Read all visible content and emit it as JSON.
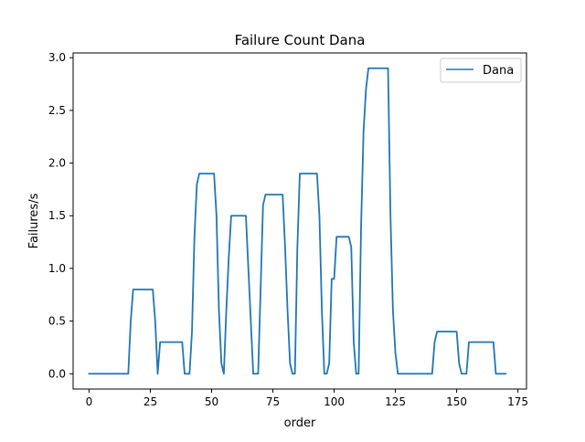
{
  "chart_data": {
    "type": "line",
    "title": "Failure Count Dana",
    "xlabel": "order",
    "ylabel": "Failures/s",
    "xlim": [
      -6.5,
      178.5
    ],
    "ylim": [
      -0.145,
      3.045
    ],
    "x_ticks": [
      0,
      25,
      50,
      75,
      100,
      125,
      150,
      175
    ],
    "x_tick_labels": [
      "0",
      "25",
      "50",
      "75",
      "100",
      "125",
      "150",
      "175"
    ],
    "y_ticks": [
      0.0,
      0.5,
      1.0,
      1.5,
      2.0,
      2.5,
      3.0
    ],
    "y_tick_labels": [
      "0.0",
      "0.5",
      "1.0",
      "1.5",
      "2.0",
      "2.5",
      "3.0"
    ],
    "grid": false,
    "legend": {
      "placement": "top-right",
      "entries": [
        "Dana"
      ]
    },
    "series": [
      {
        "name": "Dana",
        "color": "#1f77b4",
        "x": [
          0,
          16,
          17,
          18,
          26,
          27,
          28,
          29,
          30,
          38,
          39,
          41,
          42,
          43,
          44,
          45,
          46,
          51,
          52,
          53,
          54,
          55,
          56,
          57,
          58,
          64,
          65,
          66,
          67,
          69,
          70,
          71,
          72,
          73,
          74,
          79,
          80,
          81,
          82,
          83,
          84,
          85,
          86,
          87,
          93,
          94,
          95,
          96,
          97,
          98,
          99,
          100,
          101,
          102,
          106,
          107,
          108,
          109,
          110,
          111,
          112,
          113,
          114,
          115,
          116,
          122,
          123,
          124,
          125,
          126,
          127,
          140,
          141,
          142,
          150,
          151,
          152,
          153,
          154,
          155,
          156,
          165,
          166,
          167,
          170
        ],
        "values": [
          0,
          0,
          0.5,
          0.8,
          0.8,
          0.5,
          0,
          0.3,
          0.3,
          0.3,
          0,
          0,
          0.4,
          1.3,
          1.8,
          1.9,
          1.9,
          1.9,
          1.5,
          0.6,
          0.1,
          0,
          0.6,
          1.1,
          1.5,
          1.5,
          1.0,
          0.5,
          0,
          0,
          0.8,
          1.6,
          1.7,
          1.7,
          1.7,
          1.7,
          1.2,
          0.6,
          0.1,
          0,
          0,
          1.2,
          1.9,
          1.9,
          1.9,
          1.5,
          0.6,
          0,
          0,
          0.1,
          0.9,
          0.9,
          1.3,
          1.3,
          1.3,
          1.2,
          0.3,
          0,
          0,
          1.4,
          2.3,
          2.7,
          2.9,
          2.9,
          2.9,
          2.9,
          1.5,
          0.6,
          0.2,
          0,
          0,
          0,
          0.3,
          0.4,
          0.4,
          0.1,
          0,
          0,
          0,
          0.3,
          0.3,
          0.3,
          0,
          0,
          0
        ]
      }
    ]
  }
}
